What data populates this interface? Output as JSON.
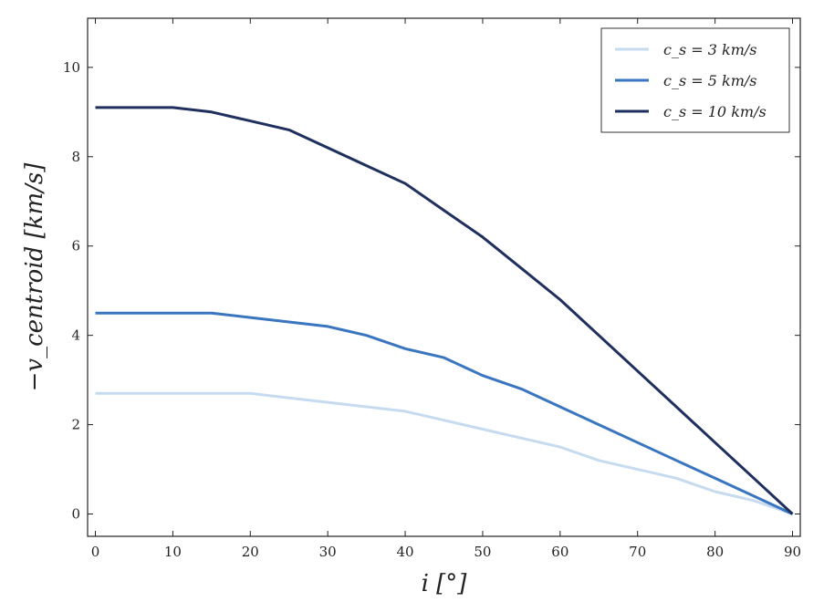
{
  "chart_data": {
    "type": "line",
    "title": "",
    "xlabel": "i [°]",
    "ylabel": "−v_centroid [km/s]",
    "xlim": [
      -1,
      91
    ],
    "ylim": [
      -0.5,
      11.1
    ],
    "xticks": [
      0,
      10,
      20,
      30,
      40,
      50,
      60,
      70,
      80,
      90
    ],
    "yticks": [
      0,
      2,
      4,
      6,
      8,
      10
    ],
    "grid": false,
    "legend_position": "top-right",
    "series": [
      {
        "name": "c_s = 3 km/s",
        "color": "#c6dbef",
        "x": [
          0,
          5,
          10,
          15,
          20,
          25,
          30,
          35,
          40,
          45,
          50,
          55,
          60,
          65,
          70,
          75,
          80,
          85,
          90
        ],
        "y": [
          2.7,
          2.7,
          2.7,
          2.7,
          2.7,
          2.6,
          2.5,
          2.4,
          2.3,
          2.1,
          1.9,
          1.7,
          1.5,
          1.2,
          1.0,
          0.8,
          0.5,
          0.3,
          0.0
        ]
      },
      {
        "name": "c_s = 5 km/s",
        "color": "#3a75c0",
        "x": [
          0,
          5,
          10,
          15,
          20,
          25,
          30,
          35,
          40,
          45,
          50,
          55,
          60,
          65,
          70,
          75,
          80,
          85,
          90
        ],
        "y": [
          4.5,
          4.5,
          4.5,
          4.5,
          4.4,
          4.3,
          4.2,
          4.0,
          3.7,
          3.5,
          3.1,
          2.8,
          2.4,
          2.0,
          1.6,
          1.2,
          0.8,
          0.4,
          0.0
        ]
      },
      {
        "name": "c_s = 10 km/s",
        "color": "#1f2f5e",
        "x": [
          0,
          5,
          10,
          15,
          20,
          25,
          30,
          35,
          40,
          45,
          50,
          55,
          60,
          65,
          70,
          75,
          80,
          85,
          90
        ],
        "y": [
          9.1,
          9.1,
          9.1,
          9.0,
          8.8,
          8.6,
          8.2,
          7.8,
          7.4,
          6.8,
          6.2,
          5.5,
          4.8,
          4.0,
          3.2,
          2.4,
          1.6,
          0.8,
          0.0
        ]
      }
    ]
  }
}
